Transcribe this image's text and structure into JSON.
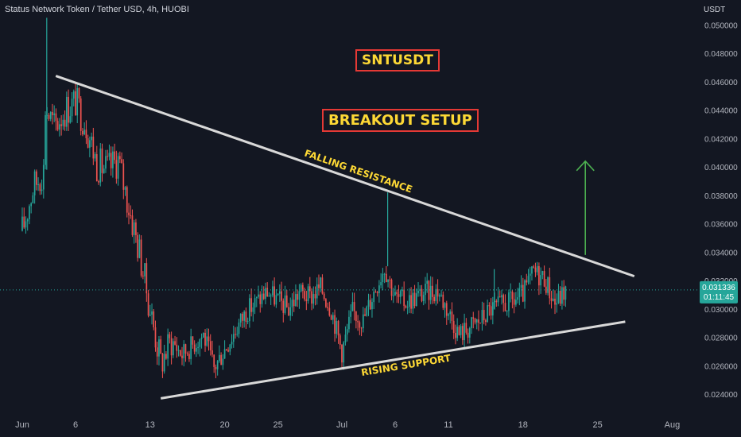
{
  "header": {
    "title": "Status Network Token / Tether USD, 4h, HUOBI"
  },
  "annotations": {
    "symbol": "SNTUSDT",
    "setup": "BREAKOUT SETUP",
    "resistance_label": "FALLING RESISTANCE",
    "support_label": "RISING SUPPORT"
  },
  "colors": {
    "background": "#131722",
    "up": "#26a69a",
    "down": "#ef5350",
    "trendline": "#d8d8d8",
    "arrow": "#4caf50",
    "price_tag": "#26a69a",
    "box_border": "#e53935",
    "box_text": "#fdd835"
  },
  "chart_data": {
    "type": "candlestick",
    "title": "Status Network Token / Tether USD, 4h, HUOBI",
    "y_axis_unit": "USDT",
    "ylim": [
      0.0236,
      0.0504
    ],
    "y_ticks": [
      "0.024000",
      "0.026000",
      "0.028000",
      "0.030000",
      "0.032000",
      "0.034000",
      "0.036000",
      "0.038000",
      "0.040000",
      "0.042000",
      "0.044000",
      "0.046000",
      "0.048000",
      "0.050000"
    ],
    "x_ticks": [
      "Jun",
      "6",
      "13",
      "20",
      "25",
      "Jul",
      "6",
      "11",
      "18",
      "25",
      "Aug"
    ],
    "price_path": [
      [
        "Jun 1",
        0.0355
      ],
      [
        "Jun 2",
        0.0385
      ],
      [
        "Jun 3",
        0.0398
      ],
      [
        "Jun 3",
        0.0445
      ],
      [
        "Jun 4",
        0.0428
      ],
      [
        "Jun 5",
        0.044
      ],
      [
        "Jun 6",
        0.0446
      ],
      [
        "Jun 7",
        0.043
      ],
      [
        "Jun 8",
        0.0402
      ],
      [
        "Jun 9",
        0.0398
      ],
      [
        "Jun 10",
        0.0405
      ],
      [
        "Jun 11",
        0.0372
      ],
      [
        "Jun 12",
        0.034
      ],
      [
        "Jun 13",
        0.03
      ],
      [
        "Jun 14",
        0.0262
      ],
      [
        "Jun 15",
        0.0278
      ],
      [
        "Jun 16",
        0.0268
      ],
      [
        "Jun 18",
        0.0282
      ],
      [
        "Jun 19",
        0.0258
      ],
      [
        "Jun 20",
        0.0272
      ],
      [
        "Jun 22",
        0.0298
      ],
      [
        "Jun 24",
        0.0312
      ],
      [
        "Jun 26",
        0.03
      ],
      [
        "Jun 27",
        0.0312
      ],
      [
        "Jun 28",
        0.0308
      ],
      [
        "Jun 29",
        0.0315
      ],
      [
        "Jun 30",
        0.03
      ],
      [
        "Jul 1",
        0.027
      ],
      [
        "Jul 2",
        0.0298
      ],
      [
        "Jul 3",
        0.0292
      ],
      [
        "Jul 4",
        0.0312
      ],
      [
        "Jul 5",
        0.033
      ],
      [
        "Jul 6",
        0.0308
      ],
      [
        "Jul 7",
        0.0305
      ],
      [
        "Jul 9",
        0.0312
      ],
      [
        "Jul 10",
        0.0313
      ],
      [
        "Jul 11",
        0.0298
      ],
      [
        "Jul 12",
        0.0282
      ],
      [
        "Jul 14",
        0.0292
      ],
      [
        "Jul 15",
        0.03
      ],
      [
        "Jul 17",
        0.0305
      ],
      [
        "Jul 18",
        0.031
      ],
      [
        "Jul 19",
        0.0326
      ],
      [
        "Jul 20",
        0.0322
      ],
      [
        "Jul 21",
        0.0304
      ],
      [
        "Jul 22",
        0.0313
      ]
    ],
    "spikes": [
      [
        "Jun 3",
        0.0505
      ],
      [
        "Jul 5",
        0.0382
      ],
      [
        "Jul 15",
        0.0328
      ]
    ],
    "last_price": "0.031336",
    "countdown": "01:11:45",
    "trendlines": {
      "falling_resistance": [
        [
          "Jun 4",
          0.0464
        ],
        [
          "Jul 28",
          0.0323
        ]
      ],
      "rising_support": [
        [
          "Jun 14",
          0.0237
        ],
        [
          "Jul 27",
          0.0291
        ]
      ]
    },
    "breakout_arrow": {
      "date": "Jul 24",
      "from": 0.0338,
      "to": 0.0404
    }
  }
}
